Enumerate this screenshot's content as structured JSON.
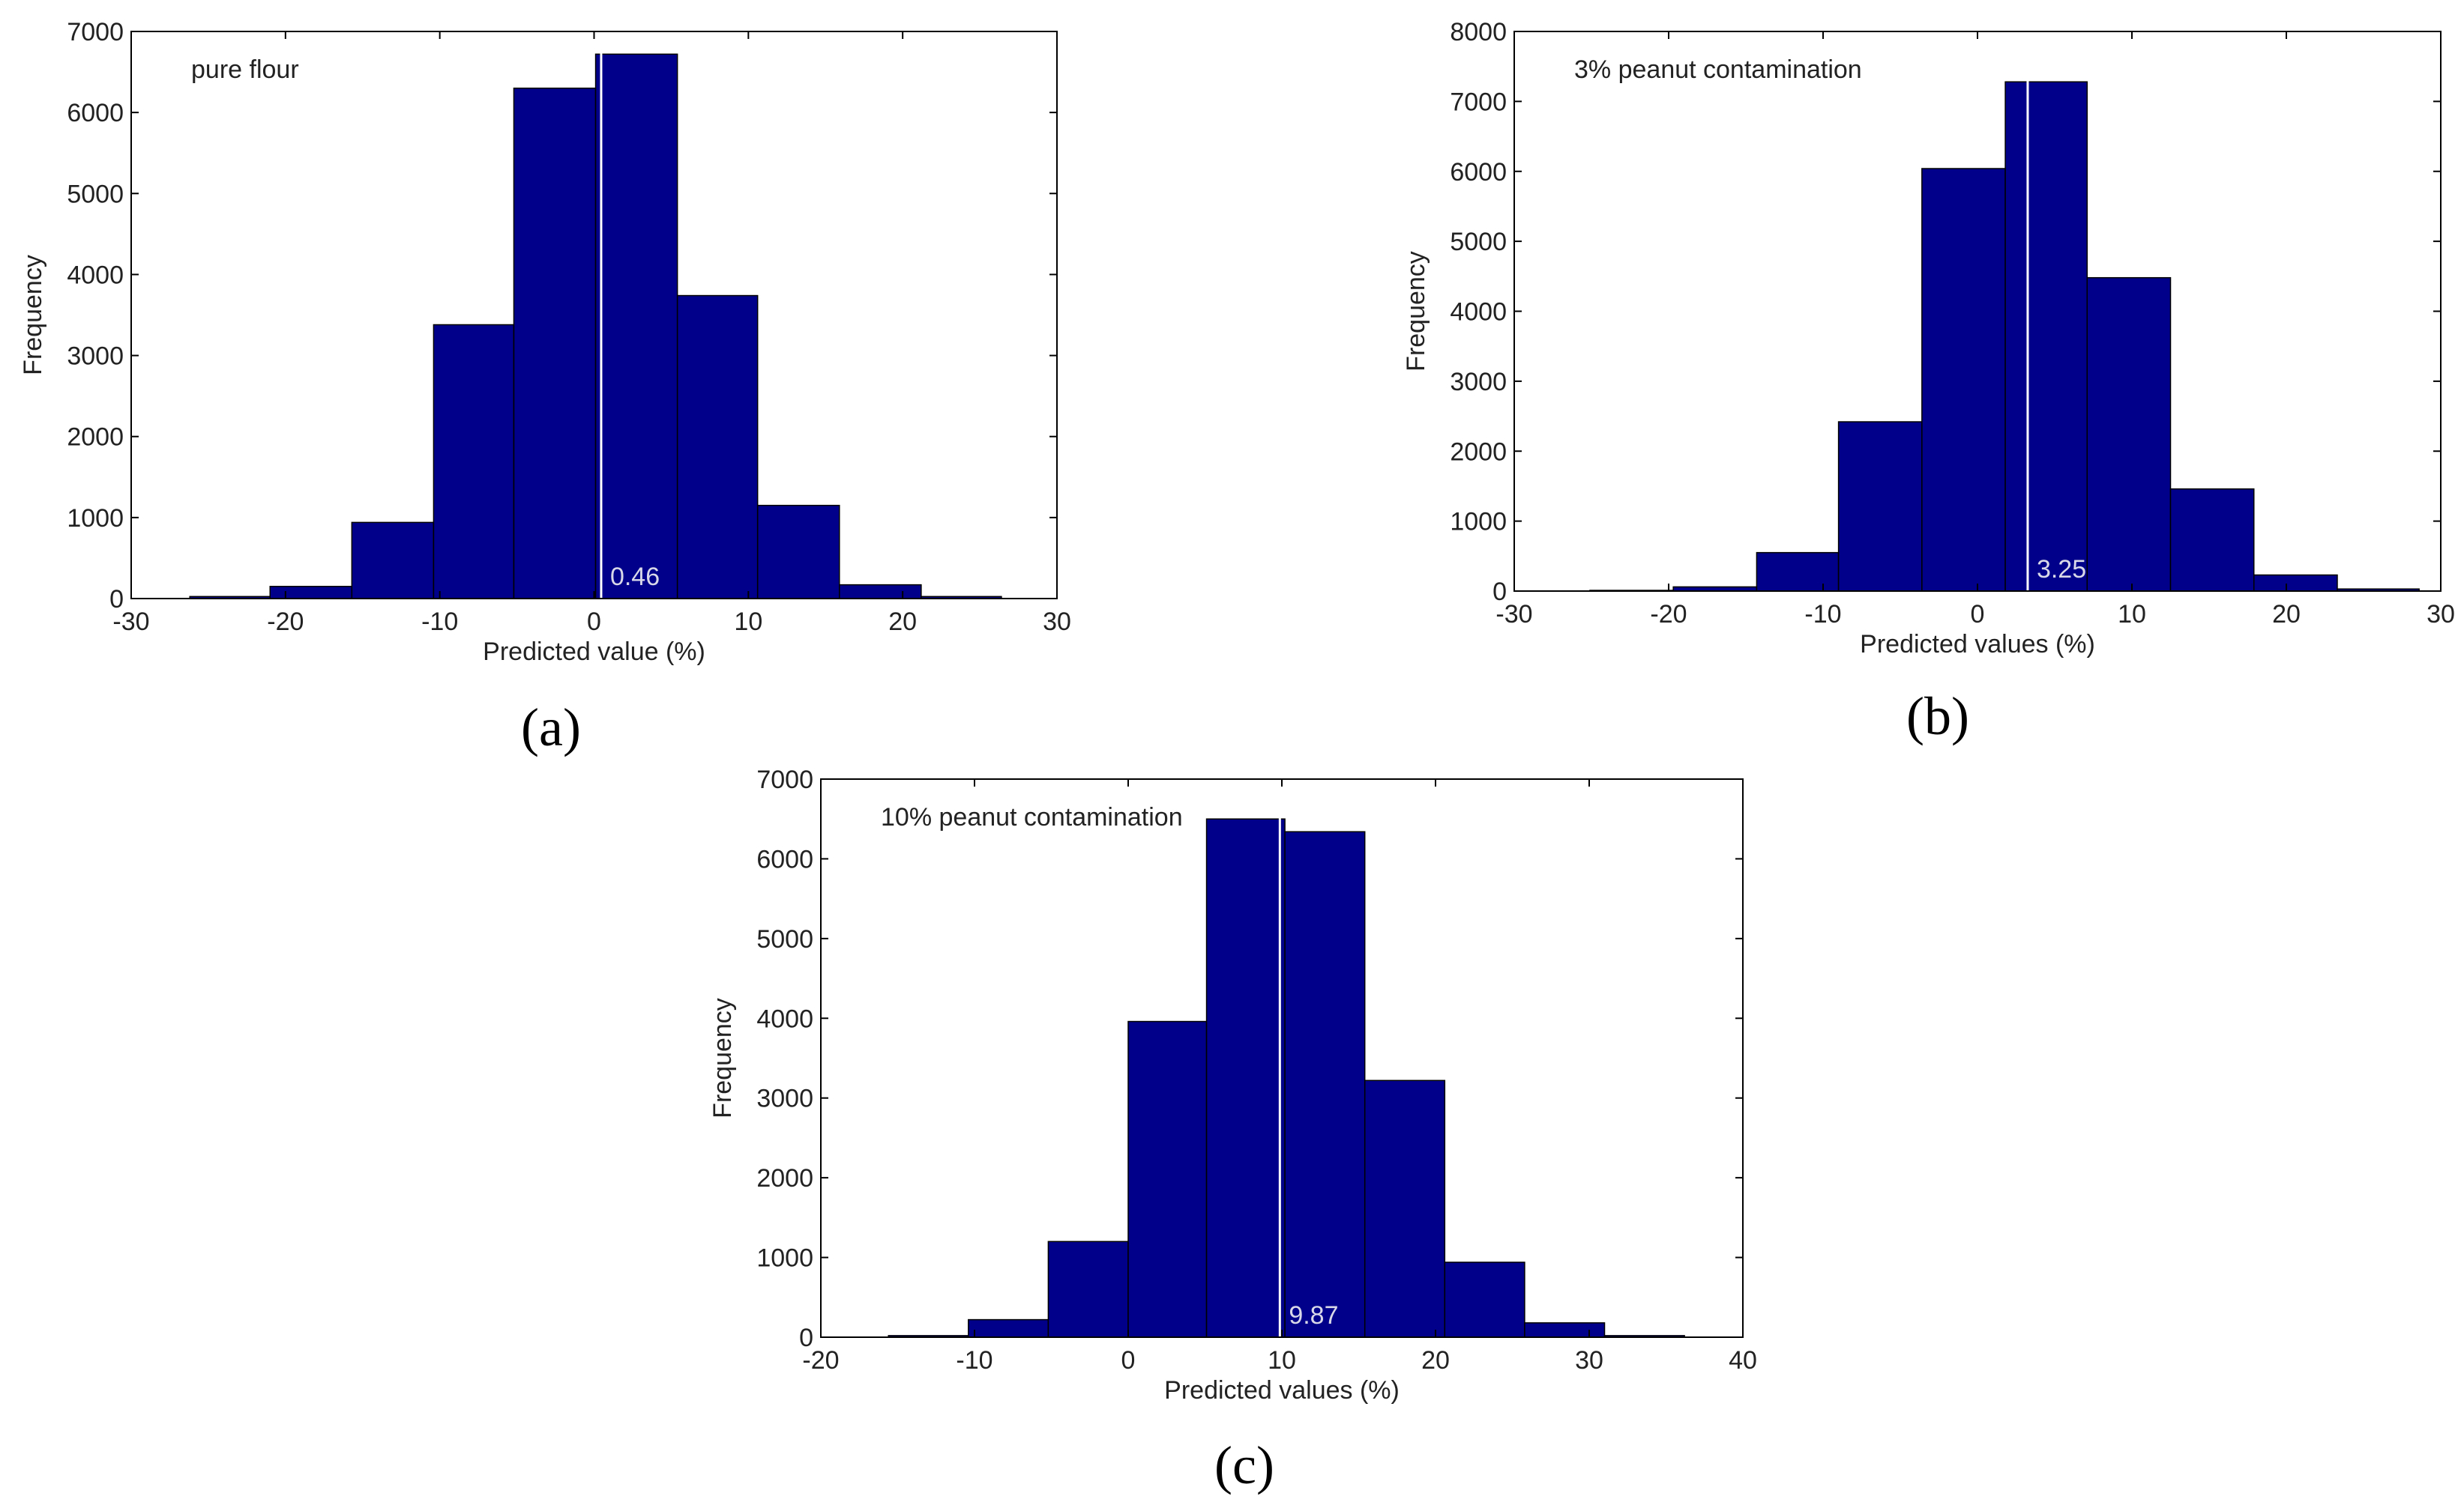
{
  "chart_data": [
    {
      "type": "bar",
      "panel_label": "(a)",
      "title": "pure flour",
      "xlabel": "Predicted value (%)",
      "ylabel": "Frequency",
      "xlim": [
        -30,
        30
      ],
      "ylim": [
        0,
        7000
      ],
      "xticks": [
        -30,
        -20,
        -10,
        0,
        10,
        20,
        30
      ],
      "yticks": [
        0,
        1000,
        2000,
        3000,
        4000,
        5000,
        6000,
        7000
      ],
      "bin_edges": [
        -26.2,
        -21.0,
        -15.7,
        -10.4,
        -5.2,
        0.1,
        5.4,
        10.6,
        15.9,
        21.2,
        26.4
      ],
      "values": [
        25,
        150,
        940,
        3380,
        6300,
        6720,
        3740,
        1150,
        170,
        25
      ],
      "mean_line": 0.46,
      "mean_label": "0.46",
      "bar_color": "#00008b",
      "mean_line_color": "#ffffff",
      "mean_label_color": "#d8d8e8"
    },
    {
      "type": "bar",
      "panel_label": "(b)",
      "title": "3% peanut contamination",
      "xlabel": "Predicted values (%)",
      "ylabel": "Frequency",
      "xlim": [
        -30,
        30
      ],
      "ylim": [
        0,
        8000
      ],
      "xticks": [
        -30,
        -20,
        -10,
        0,
        10,
        20,
        30
      ],
      "yticks": [
        0,
        1000,
        2000,
        3000,
        4000,
        5000,
        6000,
        7000,
        8000
      ],
      "bin_edges": [
        -25.1,
        -19.7,
        -14.3,
        -9.0,
        -3.6,
        1.8,
        7.1,
        12.5,
        17.9,
        23.3,
        28.6
      ],
      "values": [
        10,
        60,
        550,
        2420,
        6040,
        7280,
        4480,
        1460,
        230,
        30
      ],
      "mean_line": 3.25,
      "mean_label": "3.25",
      "bar_color": "#00008b",
      "mean_line_color": "#ffffff",
      "mean_label_color": "#d8d8e8"
    },
    {
      "type": "bar",
      "panel_label": "(c)",
      "title": "10% peanut contamination",
      "xlabel": "Predicted values (%)",
      "ylabel": "Frequency",
      "xlim": [
        -20,
        40
      ],
      "ylim": [
        0,
        7000
      ],
      "xticks": [
        -20,
        -10,
        0,
        10,
        20,
        30,
        40
      ],
      "yticks": [
        0,
        1000,
        2000,
        3000,
        4000,
        5000,
        6000,
        7000
      ],
      "bin_edges": [
        -15.6,
        -10.4,
        -5.2,
        0.0,
        5.1,
        10.2,
        15.4,
        20.6,
        25.8,
        31.0,
        36.2
      ],
      "values": [
        20,
        220,
        1200,
        3960,
        6500,
        6340,
        3220,
        940,
        180,
        20
      ],
      "mean_line": 9.87,
      "mean_label": "9.87",
      "bar_color": "#00008b",
      "mean_line_color": "#ffffff",
      "mean_label_color": "#d8d8e8"
    }
  ]
}
